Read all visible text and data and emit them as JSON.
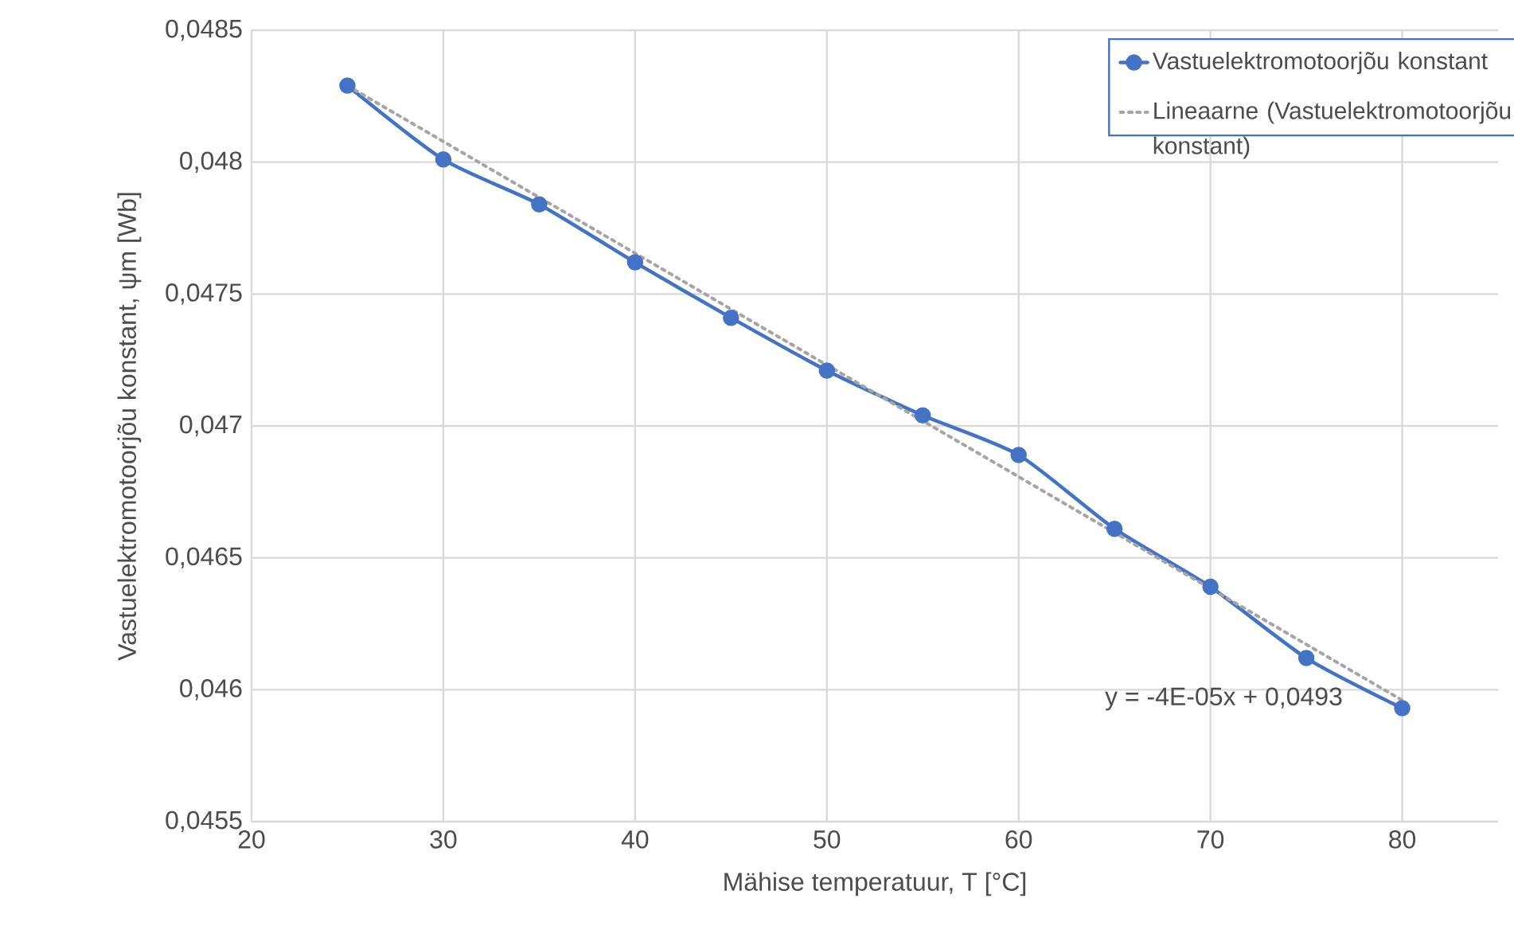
{
  "chart_data": {
    "type": "line",
    "xlabel": "Mähise temperatuur, T [°C]",
    "ylabel": "Vastuelektromotoorjõu konstant, ψm [Wb]",
    "x": [
      25,
      30,
      35,
      40,
      45,
      50,
      55,
      60,
      65,
      70,
      75,
      80
    ],
    "series": [
      {
        "name": "Vastuelektromotoorjõu konstant",
        "color": "#4472c4",
        "marker": "circle",
        "line_style": "solid",
        "values": [
          0.04829,
          0.04801,
          0.04784,
          0.04762,
          0.04741,
          0.04721,
          0.04704,
          0.04689,
          0.04661,
          0.04639,
          0.04612,
          0.04593
        ]
      },
      {
        "name": "Lineaarne (Vastuelektromotoorjõu konstant)",
        "type": "line",
        "color": "#a5a5a5",
        "marker": "none",
        "line_style": "dotted",
        "x": [
          25,
          80
        ],
        "values": [
          0.04829,
          0.04596
        ]
      }
    ],
    "xlim": [
      20,
      85
    ],
    "xticks": [
      20,
      30,
      40,
      50,
      60,
      70,
      80
    ],
    "ylim": [
      0.0455,
      0.0485
    ],
    "yticks": [
      {
        "value": 0.0455,
        "label": "0,0455"
      },
      {
        "value": 0.046,
        "label": "0,046"
      },
      {
        "value": 0.0465,
        "label": "0,0465"
      },
      {
        "value": 0.047,
        "label": "0,047"
      },
      {
        "value": 0.0475,
        "label": "0,0475"
      },
      {
        "value": 0.048,
        "label": "0,048"
      },
      {
        "value": 0.0485,
        "label": "0,0485"
      }
    ],
    "grid": true,
    "legend": "top right",
    "annotations": [
      "y = -4E-05x + 0,0493"
    ]
  }
}
